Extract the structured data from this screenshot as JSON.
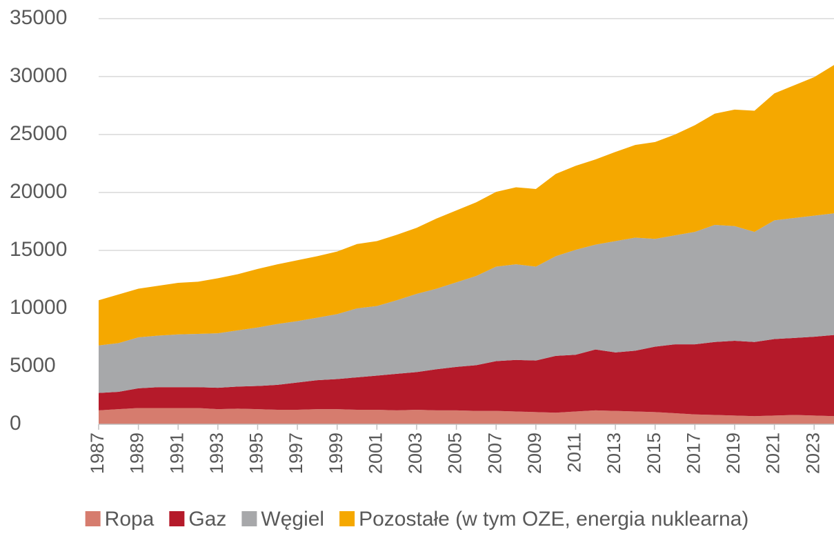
{
  "chart_data": {
    "type": "stacked_area",
    "categories": [
      "1987",
      null,
      "1989",
      null,
      "1991",
      null,
      "1993",
      null,
      "1995",
      null,
      "1997",
      null,
      "1999",
      null,
      "2001",
      null,
      "2003",
      null,
      "2005",
      null,
      "2007",
      null,
      "2009",
      null,
      "2011",
      null,
      "2013",
      null,
      "2015",
      null,
      "2017",
      null,
      "2019",
      null,
      "2021",
      null,
      "2023",
      null
    ],
    "series": [
      {
        "name": "Ropa",
        "color": "#d67c6e",
        "values": [
          1200,
          1300,
          1400,
          1400,
          1400,
          1400,
          1300,
          1350,
          1300,
          1250,
          1250,
          1300,
          1300,
          1250,
          1250,
          1200,
          1250,
          1200,
          1200,
          1150,
          1150,
          1100,
          1050,
          1000,
          1100,
          1200,
          1150,
          1100,
          1050,
          950,
          850,
          800,
          750,
          700,
          750,
          800,
          750,
          700
        ]
      },
      {
        "name": "Gaz",
        "color": "#b51a2a",
        "values": [
          1500,
          1500,
          1700,
          1800,
          1800,
          1800,
          1850,
          1900,
          2000,
          2150,
          2350,
          2500,
          2600,
          2800,
          2950,
          3150,
          3250,
          3550,
          3750,
          3950,
          4300,
          4450,
          4450,
          4900,
          4900,
          5250,
          5050,
          5250,
          5650,
          5950,
          6050,
          6300,
          6450,
          6400,
          6600,
          6650,
          6800,
          7000
        ]
      },
      {
        "name": "Węgiel",
        "color": "#a7a8aa",
        "values": [
          4100,
          4200,
          4400,
          4450,
          4550,
          4600,
          4700,
          4850,
          5050,
          5250,
          5300,
          5400,
          5600,
          5950,
          6000,
          6350,
          6750,
          6950,
          7300,
          7700,
          8150,
          8250,
          8100,
          8600,
          9050,
          9050,
          9600,
          9750,
          9300,
          9400,
          9700,
          10100,
          9900,
          9500,
          10250,
          10350,
          10450,
          10500
        ]
      },
      {
        "name": "Pozostałe (w tym OZE, energia nuklearna)",
        "color": "#f5a800",
        "values": [
          3900,
          4200,
          4200,
          4300,
          4450,
          4500,
          4750,
          4850,
          5050,
          5150,
          5250,
          5300,
          5400,
          5550,
          5600,
          5650,
          5700,
          6050,
          6200,
          6350,
          6450,
          6650,
          6700,
          7100,
          7250,
          7350,
          7700,
          8000,
          8350,
          8700,
          9200,
          9600,
          10050,
          10450,
          10950,
          11450,
          11950,
          12800
        ]
      }
    ],
    "ylim": [
      0,
      35000
    ],
    "yticks": [
      0,
      5000,
      10000,
      15000,
      20000,
      25000,
      30000,
      35000
    ],
    "grid": true,
    "legend": "bottom"
  }
}
